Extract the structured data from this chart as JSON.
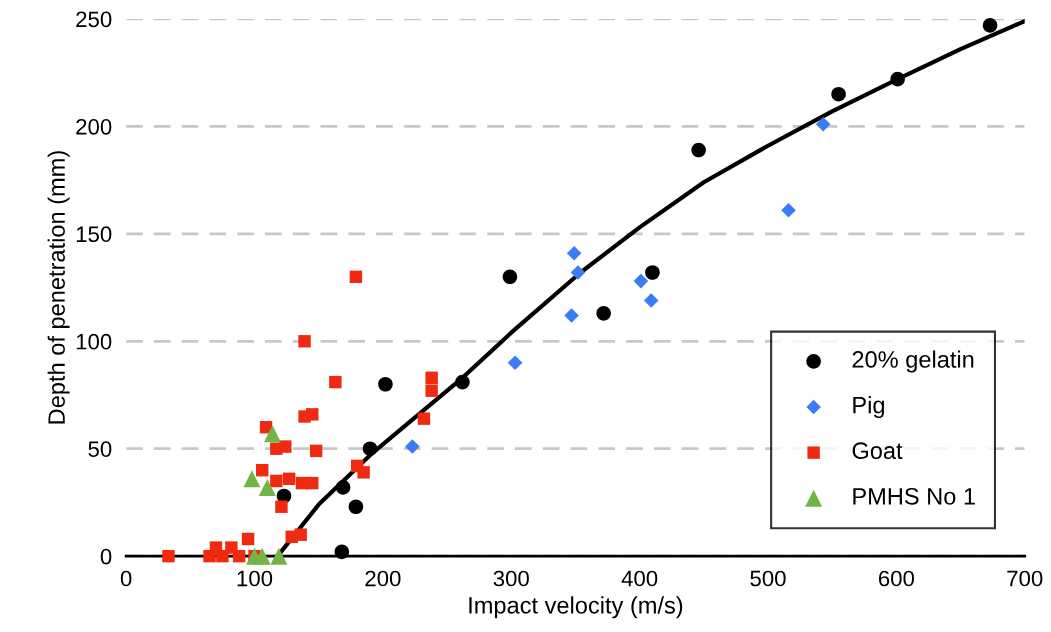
{
  "chart_data": {
    "type": "scatter",
    "xlabel": "Impact velocity (m/s)",
    "ylabel": "Depth of penetration (mm)",
    "xlim": [
      0,
      700
    ],
    "xticks": [
      0,
      100,
      200,
      300,
      400,
      500,
      600,
      700
    ],
    "ylim": [
      0,
      250
    ],
    "yticks": [
      0,
      50,
      100,
      150,
      200,
      250
    ],
    "grid": "y",
    "legend": "bottom right",
    "series": [
      {
        "name": "20% gelatin",
        "color": "#000000",
        "marker": "circle",
        "x": [
          123,
          169,
          168,
          179,
          190,
          202,
          262,
          299,
          372,
          410,
          446,
          555,
          601,
          673
        ],
        "values": [
          28,
          32,
          2,
          23,
          50,
          80,
          81,
          130,
          113,
          132,
          189,
          215,
          222,
          247
        ]
      },
      {
        "name": "Pig",
        "color": "#3b7cf4",
        "marker": "diamond",
        "x": [
          223,
          303,
          349,
          352,
          347,
          401,
          409,
          516,
          543
        ],
        "values": [
          51,
          90,
          141,
          132,
          112,
          128,
          119,
          161,
          201
        ]
      },
      {
        "name": "Goat",
        "color": "#f02a10",
        "marker": "square",
        "x": [
          33,
          65,
          70,
          75,
          82,
          88,
          95,
          100,
          109,
          117,
          124,
          106,
          117,
          127,
          137,
          145,
          121,
          129,
          136,
          139,
          139,
          145,
          148,
          163,
          179,
          180,
          185,
          232,
          238,
          238
        ],
        "values": [
          0,
          0,
          4,
          0,
          4,
          0,
          8,
          0,
          60,
          50,
          51,
          40,
          35,
          36,
          34,
          34,
          23,
          9,
          10,
          100,
          65,
          66,
          49,
          81,
          130,
          42,
          39,
          64,
          83,
          77
        ]
      },
      {
        "name": "PMHS No 1",
        "color": "#72b446",
        "marker": "triangle",
        "x": [
          114,
          98,
          110,
          100,
          106,
          119
        ],
        "values": [
          57,
          36,
          32,
          0,
          0,
          0
        ]
      },
      {
        "type": "line",
        "color": "#000000",
        "line_style": "solid",
        "marker": "none",
        "x": [
          118,
          150,
          190,
          230,
          262,
          300,
          354,
          400,
          450,
          500,
          550,
          601,
          650,
          700
        ],
        "values": [
          0,
          24,
          47,
          67,
          83,
          104,
          132,
          153,
          174,
          191,
          207,
          222,
          236,
          249
        ]
      }
    ]
  }
}
